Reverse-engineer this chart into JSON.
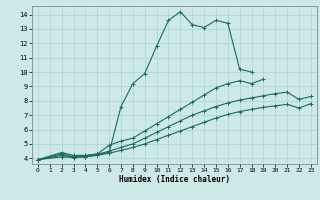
{
  "xlabel": "Humidex (Indice chaleur)",
  "xlim": [
    -0.5,
    23.5
  ],
  "ylim": [
    3.6,
    14.6
  ],
  "xticks": [
    0,
    1,
    2,
    3,
    4,
    5,
    6,
    7,
    8,
    9,
    10,
    11,
    12,
    13,
    14,
    15,
    16,
    17,
    18,
    19,
    20,
    21,
    22,
    23
  ],
  "yticks": [
    4,
    5,
    6,
    7,
    8,
    9,
    10,
    11,
    12,
    13,
    14
  ],
  "bg_color": "#cce9e7",
  "grid_color": "#aad4d2",
  "line_color": "#1a6b5a",
  "curves": [
    {
      "x": [
        0,
        2,
        3,
        4,
        5,
        6,
        7,
        8,
        9,
        10,
        11,
        12,
        13,
        14,
        15,
        16,
        17,
        18
      ],
      "y": [
        3.9,
        4.4,
        4.2,
        4.2,
        4.3,
        4.4,
        7.6,
        9.2,
        9.9,
        11.8,
        13.6,
        14.2,
        13.3,
        13.1,
        13.6,
        13.4,
        10.2,
        10.0
      ]
    },
    {
      "x": [
        0,
        2,
        3,
        4,
        5,
        6,
        7,
        8,
        9,
        10,
        11,
        12,
        13,
        14,
        15,
        16,
        17,
        18,
        19
      ],
      "y": [
        3.9,
        4.3,
        4.1,
        4.15,
        4.3,
        4.9,
        5.2,
        5.4,
        5.9,
        6.4,
        6.9,
        7.4,
        7.9,
        8.4,
        8.9,
        9.2,
        9.4,
        9.2,
        9.5
      ]
    },
    {
      "x": [
        0,
        2,
        3,
        4,
        5,
        6,
        7,
        8,
        9,
        10,
        11,
        12,
        13,
        14,
        15,
        16,
        17,
        18,
        19,
        20,
        21,
        22,
        23
      ],
      "y": [
        3.9,
        4.2,
        4.1,
        4.1,
        4.25,
        4.5,
        4.75,
        5.0,
        5.4,
        5.8,
        6.2,
        6.6,
        7.0,
        7.3,
        7.6,
        7.85,
        8.05,
        8.2,
        8.35,
        8.5,
        8.6,
        8.1,
        8.3
      ]
    },
    {
      "x": [
        0,
        2,
        3,
        4,
        5,
        6,
        7,
        8,
        9,
        10,
        11,
        12,
        13,
        14,
        15,
        16,
        17,
        18,
        19,
        20,
        21,
        22,
        23
      ],
      "y": [
        3.9,
        4.1,
        4.05,
        4.1,
        4.2,
        4.35,
        4.55,
        4.75,
        5.0,
        5.3,
        5.6,
        5.9,
        6.2,
        6.5,
        6.8,
        7.05,
        7.25,
        7.4,
        7.55,
        7.65,
        7.75,
        7.5,
        7.8
      ]
    }
  ]
}
